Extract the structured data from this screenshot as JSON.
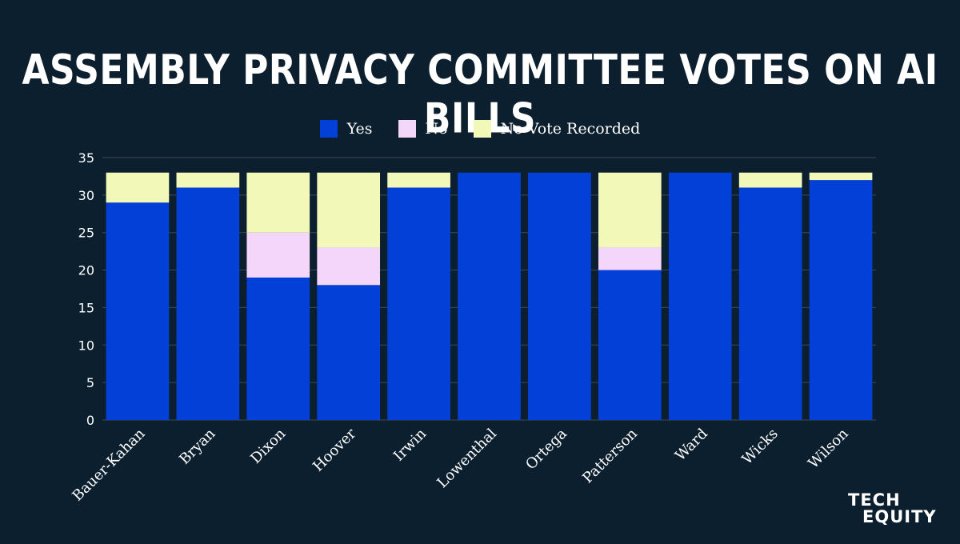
{
  "title": "ASSEMBLY PRIVACY COMMITTEE VOTES ON AI BILLS",
  "logo": {
    "line1": "TECH",
    "line2": "EQUITY"
  },
  "colors": {
    "background": "#0c1f2e",
    "yes": "#0340d8",
    "no": "#f5d6fb",
    "no_vote": "#f1f8b8",
    "grid": "#3a4a58",
    "text": "#ffffff"
  },
  "chart_data": {
    "type": "bar",
    "stacked": true,
    "title": "ASSEMBLY PRIVACY COMMITTEE VOTES ON AI BILLS",
    "xlabel": "",
    "ylabel": "",
    "ylim": [
      0,
      35
    ],
    "yticks": [
      0,
      5,
      10,
      15,
      20,
      25,
      30,
      35
    ],
    "grid": true,
    "legend_position": "top-center",
    "categories": [
      "Bauer-Kahan",
      "Bryan",
      "Dixon",
      "Hoover",
      "Irwin",
      "Lowenthal",
      "Ortega",
      "Patterson",
      "Ward",
      "Wicks",
      "Wilson"
    ],
    "series": [
      {
        "name": "Yes",
        "color": "#0340d8",
        "values": [
          29,
          31,
          19,
          18,
          31,
          33,
          33,
          20,
          33,
          31,
          32
        ]
      },
      {
        "name": "No",
        "color": "#f5d6fb",
        "values": [
          0,
          0,
          6,
          5,
          0,
          0,
          0,
          3,
          0,
          0,
          0
        ]
      },
      {
        "name": "No Vote Recorded",
        "color": "#f1f8b8",
        "values": [
          4,
          2,
          8,
          10,
          2,
          0,
          0,
          10,
          0,
          2,
          1
        ]
      }
    ]
  }
}
